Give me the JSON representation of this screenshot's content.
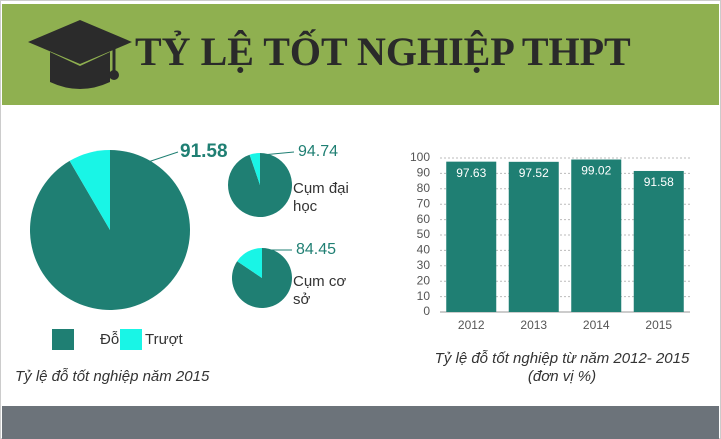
{
  "header": {
    "title": "TỶ LỆ TỐT NGHIỆP THPT"
  },
  "chart_data": [
    {
      "type": "pie",
      "categories": [
        "Đỗ",
        "Trượt"
      ],
      "values": [
        91.58,
        8.42
      ],
      "colors": [
        "#1f7f73",
        "#19f5e6"
      ],
      "caption": "Tỷ lệ đỗ tốt nghiệp năm 2015"
    },
    {
      "type": "pie",
      "title": "Cụm đại học",
      "values": [
        94.74,
        5.26
      ],
      "colors": [
        "#1f7f73",
        "#19f5e6"
      ]
    },
    {
      "type": "pie",
      "title": "Cụm cơ sở",
      "values": [
        84.45,
        15.55
      ],
      "colors": [
        "#1f7f73",
        "#19f5e6"
      ]
    },
    {
      "type": "bar",
      "categories": [
        "2012",
        "2013",
        "2014",
        "2015"
      ],
      "values": [
        97.63,
        97.52,
        99.02,
        91.58
      ],
      "color": "#1f7f73",
      "ylim": [
        0,
        100
      ],
      "yticks": [
        0,
        10,
        20,
        30,
        40,
        50,
        60,
        70,
        80,
        90,
        100
      ],
      "grid": true,
      "caption": "Tỷ lệ đỗ tốt nghiệp từ năm 2012- 2015",
      "subtitle": "(đơn vị %)"
    }
  ]
}
